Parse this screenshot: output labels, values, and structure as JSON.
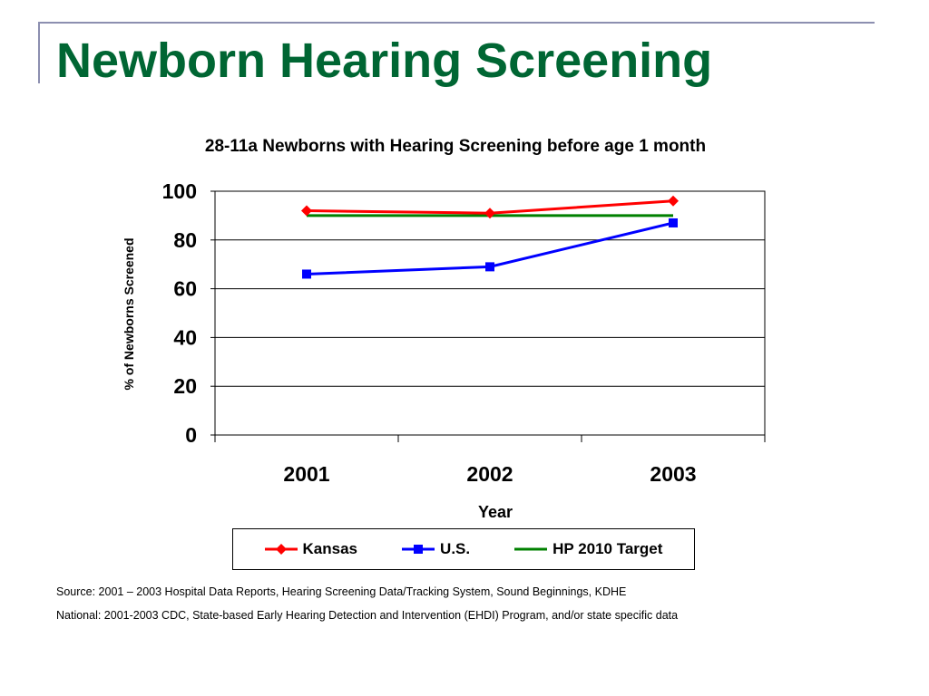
{
  "slide": {
    "title": "Newborn Hearing Screening"
  },
  "chart_data": {
    "type": "line",
    "title": "28-11a Newborns with Hearing Screening before age 1 month",
    "xlabel": "Year",
    "ylabel": "% of Newborns Screened",
    "categories": [
      "2001",
      "2002",
      "2003"
    ],
    "ylim": [
      0,
      100
    ],
    "yticks": [
      0,
      20,
      40,
      60,
      80,
      100
    ],
    "grid": true,
    "legend_position": "bottom",
    "series": [
      {
        "name": "Kansas",
        "values": [
          92,
          91,
          96
        ],
        "color": "#ff0000",
        "marker": "diamond"
      },
      {
        "name": "U.S.",
        "values": [
          66,
          69,
          87
        ],
        "color": "#0000ff",
        "marker": "square"
      },
      {
        "name": "HP 2010 Target",
        "values": [
          90,
          90,
          90
        ],
        "color": "#008000",
        "marker": "none"
      }
    ]
  },
  "footer": {
    "source_line": "Source:  2001 – 2003 Hospital Data Reports, Hearing Screening Data/Tracking System,  Sound Beginnings, KDHE",
    "national_line": "National:  2001-2003 CDC, State-based Early Hearing Detection and Intervention (EHDI) Program, and/or state specific data"
  }
}
